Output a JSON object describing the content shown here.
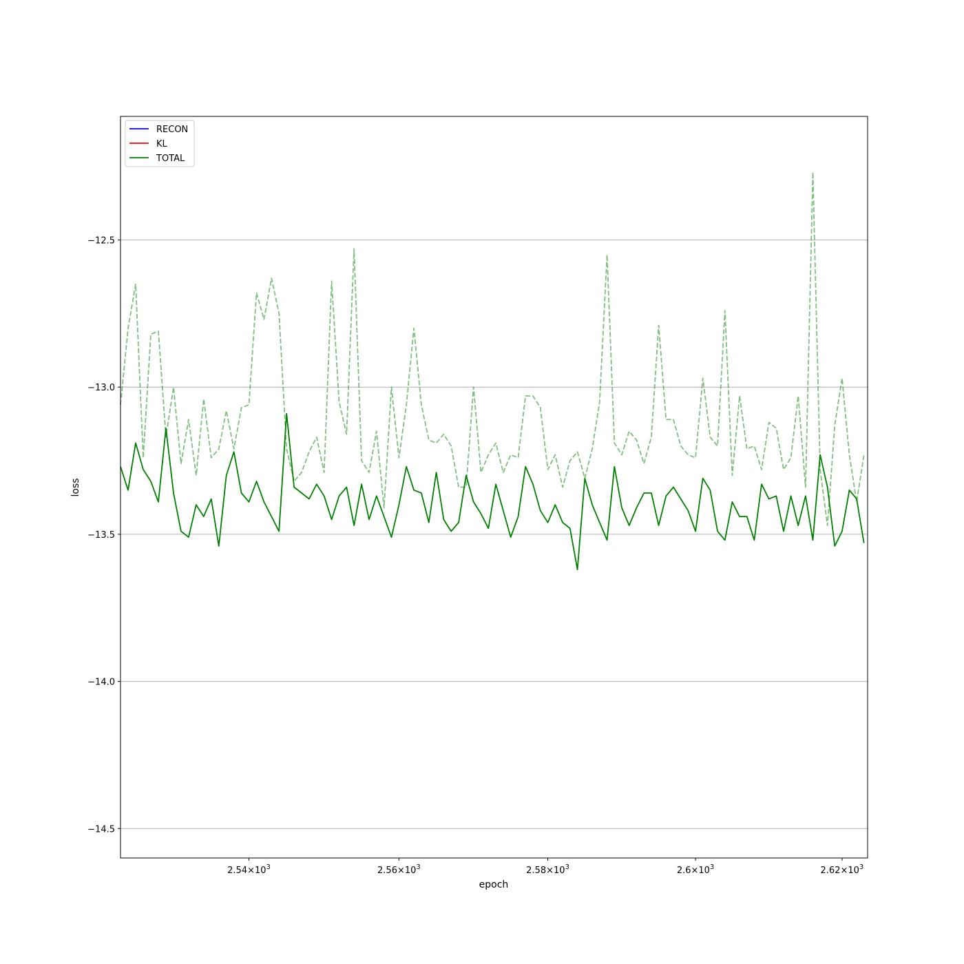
{
  "chart_data": {
    "type": "line",
    "title": "",
    "xlabel": "epoch",
    "ylabel": "loss",
    "xscale": "log",
    "xlim": [
      2523,
      2623.5
    ],
    "ylim": [
      -14.6,
      -12.08
    ],
    "grid": "y",
    "legend_position": "top-left",
    "x_ticks": [
      {
        "value": 2540,
        "mantissa": "2.54",
        "base": "10",
        "exp": "3"
      },
      {
        "value": 2560,
        "mantissa": "2.56",
        "base": "10",
        "exp": "3"
      },
      {
        "value": 2580,
        "mantissa": "2.58",
        "base": "10",
        "exp": "3"
      },
      {
        "value": 2600,
        "mantissa": "2.6",
        "base": "10",
        "exp": "3"
      },
      {
        "value": 2620,
        "mantissa": "2.62",
        "base": "10",
        "exp": "3"
      }
    ],
    "y_ticks": [
      {
        "value": -12.5,
        "label": "−12.5"
      },
      {
        "value": -13.0,
        "label": "−13.0"
      },
      {
        "value": -13.5,
        "label": "−13.5"
      },
      {
        "value": -14.0,
        "label": "−14.0"
      },
      {
        "value": -14.5,
        "label": "−14.5"
      }
    ],
    "x_start": 2523,
    "x_step": 1,
    "legend": [
      {
        "name": "RECON",
        "color": "#0000ff"
      },
      {
        "name": "KL",
        "color": "#ff0000"
      },
      {
        "name": "TOTAL",
        "color": "#008000"
      }
    ],
    "series": [
      {
        "name": "TOTAL",
        "style": "solid",
        "color": "#008000",
        "opacity": 1,
        "values": [
          -13.27,
          -13.35,
          -13.19,
          -13.28,
          -13.32,
          -13.39,
          -13.14,
          -13.36,
          -13.49,
          -13.51,
          -13.4,
          -13.44,
          -13.38,
          -13.54,
          -13.3,
          -13.22,
          -13.36,
          -13.39,
          -13.32,
          -13.39,
          -13.44,
          -13.49,
          -13.09,
          -13.34,
          -13.36,
          -13.38,
          -13.33,
          -13.37,
          -13.45,
          -13.37,
          -13.34,
          -13.47,
          -13.33,
          -13.45,
          -13.37,
          -13.44,
          -13.51,
          -13.4,
          -13.27,
          -13.35,
          -13.36,
          -13.46,
          -13.29,
          -13.45,
          -13.49,
          -13.46,
          -13.3,
          -13.39,
          -13.43,
          -13.48,
          -13.33,
          -13.42,
          -13.51,
          -13.44,
          -13.27,
          -13.33,
          -13.42,
          -13.46,
          -13.4,
          -13.46,
          -13.48,
          -13.62,
          -13.31,
          -13.4,
          -13.46,
          -13.52,
          -13.27,
          -13.41,
          -13.47,
          -13.41,
          -13.36,
          -13.36,
          -13.47,
          -13.37,
          -13.34,
          -13.38,
          -13.42,
          -13.49,
          -13.31,
          -13.35,
          -13.49,
          -13.52,
          -13.39,
          -13.44,
          -13.44,
          -13.52,
          -13.33,
          -13.38,
          -13.37,
          -13.49,
          -13.37,
          -13.47,
          -13.37,
          -13.52,
          -13.23,
          -13.34,
          -13.54,
          -13.49,
          -13.35,
          -13.38,
          -13.53
        ]
      },
      {
        "name": "",
        "style": "dashed",
        "color": "#008000",
        "opacity": 0.5,
        "values": [
          -13.06,
          -12.8,
          -12.65,
          -13.24,
          -12.82,
          -12.81,
          -13.17,
          -13.0,
          -13.26,
          -13.11,
          -13.3,
          -13.04,
          -13.24,
          -13.21,
          -13.08,
          -13.21,
          -13.07,
          -13.06,
          -12.68,
          -12.77,
          -12.63,
          -12.75,
          -13.21,
          -13.32,
          -13.29,
          -13.22,
          -13.17,
          -13.29,
          -12.64,
          -13.05,
          -13.16,
          -12.53,
          -13.25,
          -13.29,
          -13.15,
          -13.41,
          -13.0,
          -13.24,
          -13.06,
          -12.8,
          -13.06,
          -13.18,
          -13.19,
          -13.16,
          -13.2,
          -13.34,
          -13.34,
          -13.0,
          -13.29,
          -13.23,
          -13.19,
          -13.29,
          -13.23,
          -13.24,
          -13.03,
          -13.03,
          -13.07,
          -13.28,
          -13.23,
          -13.34,
          -13.25,
          -13.22,
          -13.31,
          -13.21,
          -13.05,
          -12.55,
          -13.19,
          -13.23,
          -13.15,
          -13.18,
          -13.26,
          -13.17,
          -12.79,
          -13.11,
          -13.11,
          -13.2,
          -13.23,
          -13.24,
          -12.97,
          -13.17,
          -13.2,
          -12.74,
          -13.3,
          -13.03,
          -13.21,
          -13.2,
          -13.28,
          -13.12,
          -13.14,
          -13.28,
          -13.24,
          -13.03,
          -13.34,
          -12.27,
          -13.28,
          -13.47,
          -13.13,
          -12.97,
          -13.23,
          -13.39,
          -13.23
        ]
      }
    ]
  }
}
